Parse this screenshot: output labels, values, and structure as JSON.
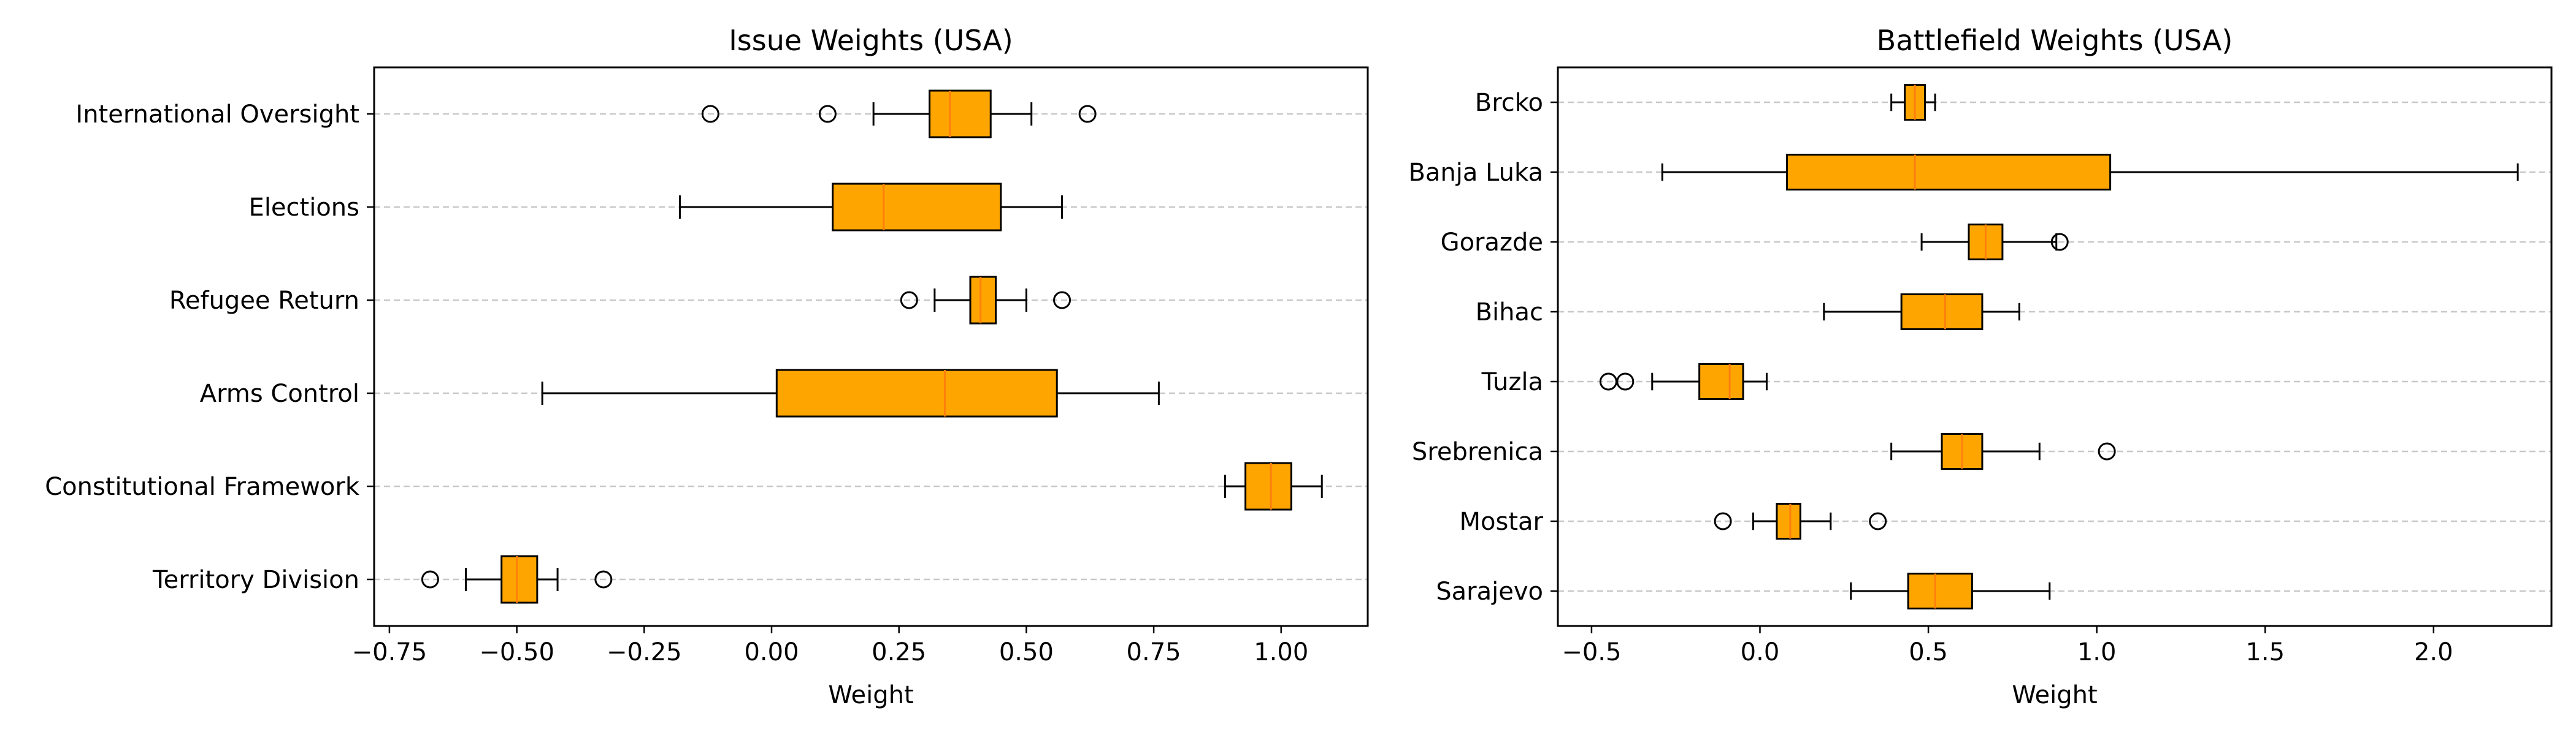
{
  "colors": {
    "box_fill": "#FFA500",
    "median": "#FF7F0E",
    "grid": "#C8C8C8",
    "axis": "#000000",
    "background": "#FFFFFF"
  },
  "chart_data": [
    {
      "type": "boxplot",
      "orientation": "horizontal",
      "title": "Issue Weights (USA)",
      "xlabel": "Weight",
      "ylabel": "",
      "xlim": [
        -0.78,
        1.17
      ],
      "xticks": [
        -0.75,
        -0.5,
        -0.25,
        0.0,
        0.25,
        0.5,
        0.75,
        1.0
      ],
      "xtick_labels": [
        "−0.75",
        "−0.50",
        "−0.25",
        "0.00",
        "0.25",
        "0.50",
        "0.75",
        "1.00"
      ],
      "grid": "horizontal dashed",
      "categories": [
        "International Oversight",
        "Elections",
        "Refugee Return",
        "Arms Control",
        "Constitutional Framework",
        "Territory Division"
      ],
      "boxes": [
        {
          "label": "International Oversight",
          "whislo": 0.2,
          "q1": 0.31,
          "med": 0.35,
          "q3": 0.43,
          "whishi": 0.51,
          "fliers": [
            -0.12,
            0.11,
            0.62
          ]
        },
        {
          "label": "Elections",
          "whislo": -0.18,
          "q1": 0.12,
          "med": 0.22,
          "q3": 0.45,
          "whishi": 0.57,
          "fliers": []
        },
        {
          "label": "Refugee Return",
          "whislo": 0.32,
          "q1": 0.39,
          "med": 0.41,
          "q3": 0.44,
          "whishi": 0.5,
          "fliers": [
            0.27,
            0.57
          ]
        },
        {
          "label": "Arms Control",
          "whislo": -0.45,
          "q1": 0.01,
          "med": 0.34,
          "q3": 0.56,
          "whishi": 0.76,
          "fliers": []
        },
        {
          "label": "Constitutional Framework",
          "whislo": 0.89,
          "q1": 0.93,
          "med": 0.98,
          "q3": 1.02,
          "whishi": 1.08,
          "fliers": []
        },
        {
          "label": "Territory Division",
          "whislo": -0.6,
          "q1": -0.53,
          "med": -0.5,
          "q3": -0.46,
          "whishi": -0.42,
          "fliers": [
            -0.67,
            -0.33
          ]
        }
      ]
    },
    {
      "type": "boxplot",
      "orientation": "horizontal",
      "title": "Battlefield Weights (USA)",
      "xlabel": "Weight",
      "ylabel": "",
      "xlim": [
        -0.6,
        2.35
      ],
      "xticks": [
        -0.5,
        0.0,
        0.5,
        1.0,
        1.5,
        2.0
      ],
      "xtick_labels": [
        "−0.5",
        "0.0",
        "0.5",
        "1.0",
        "1.5",
        "2.0"
      ],
      "grid": "horizontal dashed",
      "categories": [
        "Brcko",
        "Banja Luka",
        "Gorazde",
        "Bihac",
        "Tuzla",
        "Srebrenica",
        "Mostar",
        "Sarajevo"
      ],
      "boxes": [
        {
          "label": "Brcko",
          "whislo": 0.39,
          "q1": 0.43,
          "med": 0.46,
          "q3": 0.49,
          "whishi": 0.52,
          "fliers": []
        },
        {
          "label": "Banja Luka",
          "whislo": -0.29,
          "q1": 0.08,
          "med": 0.46,
          "q3": 1.04,
          "whishi": 2.25,
          "fliers": []
        },
        {
          "label": "Gorazde",
          "whislo": 0.48,
          "q1": 0.62,
          "med": 0.67,
          "q3": 0.72,
          "whishi": 0.88,
          "fliers": [
            0.89
          ]
        },
        {
          "label": "Bihac",
          "whislo": 0.19,
          "q1": 0.42,
          "med": 0.55,
          "q3": 0.66,
          "whishi": 0.77,
          "fliers": []
        },
        {
          "label": "Tuzla",
          "whislo": -0.32,
          "q1": -0.18,
          "med": -0.09,
          "q3": -0.05,
          "whishi": 0.02,
          "fliers": [
            -0.45,
            -0.4
          ]
        },
        {
          "label": "Srebrenica",
          "whislo": 0.39,
          "q1": 0.54,
          "med": 0.6,
          "q3": 0.66,
          "whishi": 0.83,
          "fliers": [
            1.03
          ]
        },
        {
          "label": "Mostar",
          "whislo": -0.02,
          "q1": 0.05,
          "med": 0.09,
          "q3": 0.12,
          "whishi": 0.21,
          "fliers": [
            -0.11,
            0.35
          ]
        },
        {
          "label": "Sarajevo",
          "whislo": 0.27,
          "q1": 0.44,
          "med": 0.52,
          "q3": 0.63,
          "whishi": 0.86,
          "fliers": []
        }
      ]
    }
  ]
}
